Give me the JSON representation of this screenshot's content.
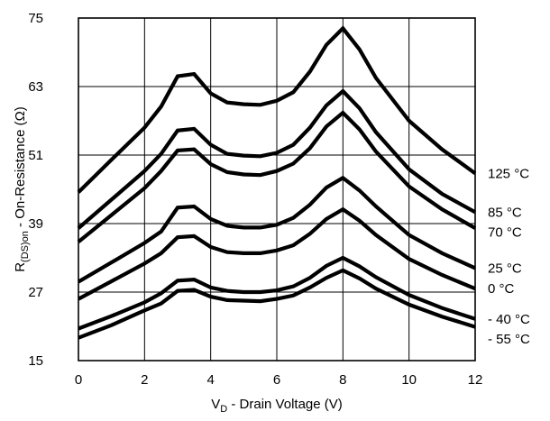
{
  "chart_data": {
    "type": "line",
    "title": "",
    "xlabel_main": "V",
    "xlabel_sub": "D",
    "xlabel_rest": " - Drain Voltage (V)",
    "ylabel_main": "R",
    "ylabel_sub": "(DS)on",
    "ylabel_rest": " - On-Resistance (Ω)",
    "xlim": [
      0,
      12
    ],
    "ylim": [
      15,
      75
    ],
    "x_ticks": [
      0,
      2,
      4,
      6,
      8,
      10,
      12
    ],
    "y_ticks": [
      15,
      27,
      39,
      51,
      63,
      75
    ],
    "x_tick_labels": [
      "0",
      "2",
      "4",
      "6",
      "8",
      "10",
      "12"
    ],
    "y_tick_labels": [
      "15",
      "27",
      "39",
      "51",
      "63",
      "75"
    ],
    "grid": true,
    "line_color": "#000000",
    "x": [
      0,
      1,
      2,
      2.5,
      3,
      3.5,
      4,
      4.5,
      5,
      5.5,
      6,
      6.5,
      7,
      7.5,
      8,
      8.5,
      9,
      10,
      11,
      12
    ],
    "series": [
      {
        "name": "125 °C",
        "values": [
          44.5,
          50.2,
          55.8,
          59.5,
          64.8,
          65.2,
          61.8,
          60.2,
          59.9,
          59.8,
          60.5,
          62.0,
          65.6,
          70.3,
          73.2,
          69.5,
          64.5,
          57.0,
          52.0,
          47.8
        ]
      },
      {
        "name": "85 °C",
        "values": [
          38.2,
          43.2,
          48.2,
          51.2,
          55.3,
          55.6,
          52.8,
          51.2,
          50.9,
          50.8,
          51.4,
          52.8,
          55.8,
          59.7,
          62.2,
          59.2,
          55.0,
          48.5,
          44.2,
          41.0
        ]
      },
      {
        "name": "70 °C",
        "values": [
          35.8,
          40.5,
          45.2,
          48.2,
          51.8,
          52.0,
          49.4,
          48.0,
          47.6,
          47.5,
          48.2,
          49.5,
          52.2,
          56.0,
          58.4,
          55.5,
          51.6,
          45.5,
          41.5,
          38.2
        ]
      },
      {
        "name": "25 °C",
        "values": [
          28.8,
          32.2,
          35.6,
          37.6,
          41.8,
          42.0,
          39.8,
          38.6,
          38.3,
          38.3,
          38.8,
          40.0,
          42.3,
          45.3,
          47.0,
          44.8,
          42.0,
          37.0,
          33.8,
          31.2
        ]
      },
      {
        "name": "0 °C",
        "values": [
          25.8,
          28.9,
          32.0,
          33.8,
          36.6,
          36.8,
          34.9,
          34.0,
          33.8,
          33.8,
          34.3,
          35.2,
          37.2,
          39.8,
          41.5,
          39.5,
          37.0,
          32.8,
          30.0,
          27.6
        ]
      },
      {
        "name": "- 40 °C",
        "values": [
          20.6,
          22.8,
          25.2,
          26.8,
          29.0,
          29.2,
          27.8,
          27.2,
          27.0,
          27.0,
          27.3,
          28.0,
          29.5,
          31.6,
          33.0,
          31.5,
          29.6,
          26.5,
          24.2,
          22.3
        ]
      },
      {
        "name": "- 55 °C",
        "values": [
          19.0,
          21.2,
          23.8,
          25.0,
          27.2,
          27.4,
          26.2,
          25.6,
          25.5,
          25.4,
          25.8,
          26.4,
          27.8,
          29.5,
          30.8,
          29.4,
          27.6,
          24.8,
          22.7,
          20.9
        ]
      }
    ]
  }
}
